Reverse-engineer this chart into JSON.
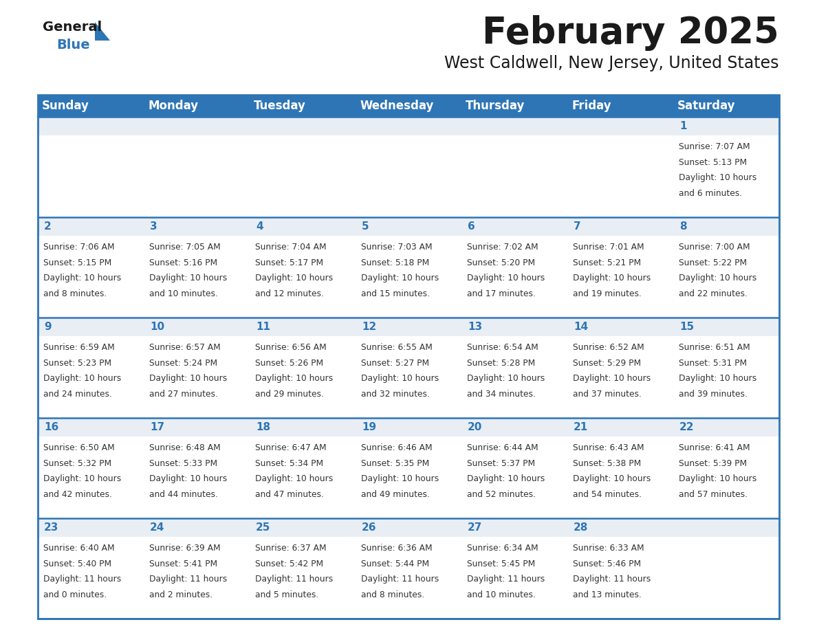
{
  "title": "February 2025",
  "subtitle": "West Caldwell, New Jersey, United States",
  "header_color": "#2E75B6",
  "header_text_color": "#FFFFFF",
  "cell_top_bg": "#E8EEF4",
  "cell_body_bg": "#FFFFFF",
  "row_separator_color": "#2E75B6",
  "outer_border_color": "#2E75B6",
  "day_headers": [
    "Sunday",
    "Monday",
    "Tuesday",
    "Wednesday",
    "Thursday",
    "Friday",
    "Saturday"
  ],
  "title_color": "#1A1A1A",
  "subtitle_color": "#1A1A1A",
  "day_num_color": "#2E75B6",
  "text_color": "#333333",
  "logo_general_color": "#1A1A1A",
  "logo_blue_color": "#2E75B6",
  "calendar_data": [
    [
      null,
      null,
      null,
      null,
      null,
      null,
      {
        "day": 1,
        "sunrise": "7:07 AM",
        "sunset": "5:13 PM",
        "daylight": "10 hours and 6 minutes."
      }
    ],
    [
      {
        "day": 2,
        "sunrise": "7:06 AM",
        "sunset": "5:15 PM",
        "daylight": "10 hours and 8 minutes."
      },
      {
        "day": 3,
        "sunrise": "7:05 AM",
        "sunset": "5:16 PM",
        "daylight": "10 hours and 10 minutes."
      },
      {
        "day": 4,
        "sunrise": "7:04 AM",
        "sunset": "5:17 PM",
        "daylight": "10 hours and 12 minutes."
      },
      {
        "day": 5,
        "sunrise": "7:03 AM",
        "sunset": "5:18 PM",
        "daylight": "10 hours and 15 minutes."
      },
      {
        "day": 6,
        "sunrise": "7:02 AM",
        "sunset": "5:20 PM",
        "daylight": "10 hours and 17 minutes."
      },
      {
        "day": 7,
        "sunrise": "7:01 AM",
        "sunset": "5:21 PM",
        "daylight": "10 hours and 19 minutes."
      },
      {
        "day": 8,
        "sunrise": "7:00 AM",
        "sunset": "5:22 PM",
        "daylight": "10 hours and 22 minutes."
      }
    ],
    [
      {
        "day": 9,
        "sunrise": "6:59 AM",
        "sunset": "5:23 PM",
        "daylight": "10 hours and 24 minutes."
      },
      {
        "day": 10,
        "sunrise": "6:57 AM",
        "sunset": "5:24 PM",
        "daylight": "10 hours and 27 minutes."
      },
      {
        "day": 11,
        "sunrise": "6:56 AM",
        "sunset": "5:26 PM",
        "daylight": "10 hours and 29 minutes."
      },
      {
        "day": 12,
        "sunrise": "6:55 AM",
        "sunset": "5:27 PM",
        "daylight": "10 hours and 32 minutes."
      },
      {
        "day": 13,
        "sunrise": "6:54 AM",
        "sunset": "5:28 PM",
        "daylight": "10 hours and 34 minutes."
      },
      {
        "day": 14,
        "sunrise": "6:52 AM",
        "sunset": "5:29 PM",
        "daylight": "10 hours and 37 minutes."
      },
      {
        "day": 15,
        "sunrise": "6:51 AM",
        "sunset": "5:31 PM",
        "daylight": "10 hours and 39 minutes."
      }
    ],
    [
      {
        "day": 16,
        "sunrise": "6:50 AM",
        "sunset": "5:32 PM",
        "daylight": "10 hours and 42 minutes."
      },
      {
        "day": 17,
        "sunrise": "6:48 AM",
        "sunset": "5:33 PM",
        "daylight": "10 hours and 44 minutes."
      },
      {
        "day": 18,
        "sunrise": "6:47 AM",
        "sunset": "5:34 PM",
        "daylight": "10 hours and 47 minutes."
      },
      {
        "day": 19,
        "sunrise": "6:46 AM",
        "sunset": "5:35 PM",
        "daylight": "10 hours and 49 minutes."
      },
      {
        "day": 20,
        "sunrise": "6:44 AM",
        "sunset": "5:37 PM",
        "daylight": "10 hours and 52 minutes."
      },
      {
        "day": 21,
        "sunrise": "6:43 AM",
        "sunset": "5:38 PM",
        "daylight": "10 hours and 54 minutes."
      },
      {
        "day": 22,
        "sunrise": "6:41 AM",
        "sunset": "5:39 PM",
        "daylight": "10 hours and 57 minutes."
      }
    ],
    [
      {
        "day": 23,
        "sunrise": "6:40 AM",
        "sunset": "5:40 PM",
        "daylight": "11 hours and 0 minutes."
      },
      {
        "day": 24,
        "sunrise": "6:39 AM",
        "sunset": "5:41 PM",
        "daylight": "11 hours and 2 minutes."
      },
      {
        "day": 25,
        "sunrise": "6:37 AM",
        "sunset": "5:42 PM",
        "daylight": "11 hours and 5 minutes."
      },
      {
        "day": 26,
        "sunrise": "6:36 AM",
        "sunset": "5:44 PM",
        "daylight": "11 hours and 8 minutes."
      },
      {
        "day": 27,
        "sunrise": "6:34 AM",
        "sunset": "5:45 PM",
        "daylight": "11 hours and 10 minutes."
      },
      {
        "day": 28,
        "sunrise": "6:33 AM",
        "sunset": "5:46 PM",
        "daylight": "11 hours and 13 minutes."
      },
      null
    ]
  ]
}
